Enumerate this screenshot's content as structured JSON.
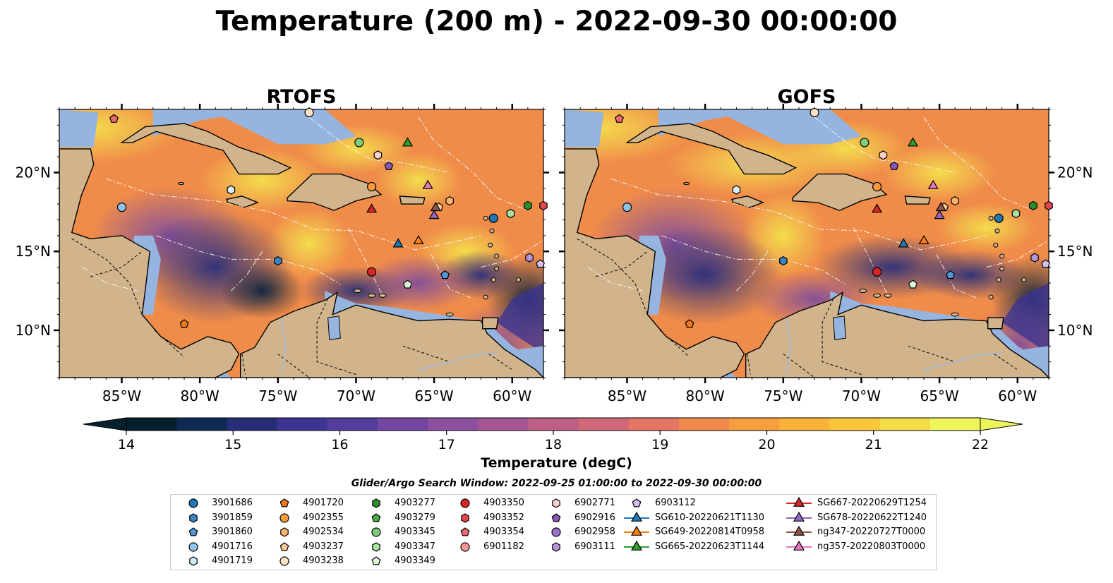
{
  "title": "Temperature (200 m) - 2022-09-30 00:00:00",
  "panels": [
    {
      "name": "RTOFS"
    },
    {
      "name": "GOFS"
    }
  ],
  "lon_ticks": [
    "85°W",
    "80°W",
    "75°W",
    "70°W",
    "65°W",
    "60°W"
  ],
  "lat_ticks": [
    "20°N",
    "15°N",
    "10°N"
  ],
  "map_extent": {
    "lon": [
      -89,
      -58
    ],
    "lat": [
      7,
      24
    ]
  },
  "colorbar": {
    "label": "Temperature (degC)",
    "ticks": [
      "14",
      "15",
      "16",
      "17",
      "18",
      "19",
      "20",
      "21",
      "22"
    ],
    "min": 14,
    "max": 22,
    "extend": "both",
    "colors": [
      "#06212e",
      "#0f2a52",
      "#262e78",
      "#3c3592",
      "#553d9e",
      "#7246a1",
      "#8d4f9f",
      "#a55693",
      "#bd5f86",
      "#d16877",
      "#e47563",
      "#f08a4a",
      "#f79e3f",
      "#fbb23a",
      "#fbc63a",
      "#f4dc45",
      "#eef55b"
    ]
  },
  "colors": {
    "land": "#d2b48c",
    "shelf": "#96b4e0"
  },
  "legend": {
    "title": "Glider/Argo Search Window: 2022-09-25 01:00:00 to 2022-09-30 00:00:00",
    "columns": [
      [
        {
          "label": "3901686",
          "marker": "circle",
          "color": "#1f77b4"
        },
        {
          "label": "3901859",
          "marker": "hexagon",
          "color": "#3a84c4"
        },
        {
          "label": "3901860",
          "marker": "pentagon",
          "color": "#4f94d4"
        },
        {
          "label": "4901716",
          "marker": "circle",
          "color": "#8ec3ea"
        },
        {
          "label": "4901719",
          "marker": "hexagon",
          "color": "#d5ecfb"
        }
      ],
      [
        {
          "label": "4901720",
          "marker": "pentagon",
          "color": "#ef7a1a"
        },
        {
          "label": "4902355",
          "marker": "circle",
          "color": "#f99a3c"
        },
        {
          "label": "4902534",
          "marker": "hexagon",
          "color": "#fbb36e"
        },
        {
          "label": "4903237",
          "marker": "pentagon",
          "color": "#fcc894"
        },
        {
          "label": "4903238",
          "marker": "circle",
          "color": "#fde3c8"
        }
      ],
      [
        {
          "label": "4903277",
          "marker": "hexagon",
          "color": "#2c8f2c"
        },
        {
          "label": "4903279",
          "marker": "pentagon",
          "color": "#49a84a"
        },
        {
          "label": "4903345",
          "marker": "circle",
          "color": "#7fcd7a"
        },
        {
          "label": "4903347",
          "marker": "hexagon",
          "color": "#a9e1a0"
        },
        {
          "label": "4903349",
          "marker": "pentagon",
          "color": "#dcf5d6"
        }
      ],
      [
        {
          "label": "4903350",
          "marker": "circle",
          "color": "#d62728"
        },
        {
          "label": "4903352",
          "marker": "hexagon",
          "color": "#e0474a"
        },
        {
          "label": "4903354",
          "marker": "pentagon",
          "color": "#eb6a6b"
        },
        {
          "label": "6901182",
          "marker": "circle",
          "color": "#f39896"
        }
      ],
      [
        {
          "label": "6902771",
          "marker": "hexagon",
          "color": "#fbcfcc"
        },
        {
          "label": "6902916",
          "marker": "pentagon",
          "color": "#8a55b8"
        },
        {
          "label": "6902958",
          "marker": "circle",
          "color": "#9c6fca"
        },
        {
          "label": "6903111",
          "marker": "hexagon",
          "color": "#b594da"
        }
      ],
      [
        {
          "label": "6903112",
          "marker": "pentagon",
          "color": "#d4c0ee"
        },
        {
          "label": "SG610-20220621T1130",
          "marker": "triangle",
          "color": "#1f77b4"
        },
        {
          "label": "SG649-20220814T0958",
          "marker": "triangle",
          "color": "#ff7f0e"
        },
        {
          "label": "SG665-20220623T1144",
          "marker": "triangle",
          "color": "#2ca02c"
        }
      ],
      [
        {
          "label": "SG667-20220629T1254",
          "marker": "triangle",
          "color": "#d62728"
        },
        {
          "label": "SG678-20220622T1240",
          "marker": "triangle",
          "color": "#9467bd"
        },
        {
          "label": "ng347-20220727T0000",
          "marker": "triangle",
          "color": "#8c564b"
        },
        {
          "label": "ng357-20220803T0000",
          "marker": "triangle",
          "color": "#e377c2"
        }
      ]
    ]
  },
  "observations": [
    {
      "label": "3901686",
      "lon": -61.2,
      "lat": 17.1
    },
    {
      "label": "3901859",
      "lon": -75.0,
      "lat": 14.4
    },
    {
      "label": "3901860",
      "lon": -64.3,
      "lat": 13.5
    },
    {
      "label": "4901716",
      "lon": -85.0,
      "lat": 17.8
    },
    {
      "label": "4901719",
      "lon": -78.0,
      "lat": 18.9
    },
    {
      "label": "4901720",
      "lon": -81.0,
      "lat": 10.4
    },
    {
      "label": "4902355",
      "lon": -69.0,
      "lat": 19.1
    },
    {
      "label": "4902534",
      "lon": -64.0,
      "lat": 18.2
    },
    {
      "label": "4903237",
      "lon": -64.7,
      "lat": 17.8
    },
    {
      "label": "4903238",
      "lon": -73.0,
      "lat": 23.8
    },
    {
      "label": "4903277",
      "lon": -59.0,
      "lat": 17.9
    },
    {
      "label": "4903345",
      "lon": -69.8,
      "lat": 21.9
    },
    {
      "label": "4903347",
      "lon": -60.1,
      "lat": 17.4
    },
    {
      "label": "4903349",
      "lon": -66.7,
      "lat": 12.9
    },
    {
      "label": "4903350",
      "lon": -69.0,
      "lat": 13.7
    },
    {
      "label": "4903352",
      "lon": -58.0,
      "lat": 17.9
    },
    {
      "label": "4903354",
      "lon": -85.5,
      "lat": 23.4
    },
    {
      "label": "6902771",
      "lon": -68.6,
      "lat": 21.1
    },
    {
      "label": "6902916",
      "lon": -67.9,
      "lat": 20.4
    },
    {
      "label": "6903111",
      "lon": -58.9,
      "lat": 14.6
    },
    {
      "label": "6903112",
      "lon": -58.2,
      "lat": 14.2
    },
    {
      "label": "SG610-20220621T1130",
      "lon": -67.3,
      "lat": 15.5
    },
    {
      "label": "SG649-20220814T0958",
      "lon": -66.0,
      "lat": 15.7
    },
    {
      "label": "SG665-20220623T1144",
      "lon": -66.7,
      "lat": 21.9
    },
    {
      "label": "SG667-20220629T1254",
      "lon": -69.0,
      "lat": 17.7
    },
    {
      "label": "SG678-20220622T1240",
      "lon": -65.0,
      "lat": 17.3
    },
    {
      "label": "ng347-20220727T0000",
      "lon": -64.9,
      "lat": 17.8
    },
    {
      "label": "ng357-20220803T0000",
      "lon": -65.4,
      "lat": 19.2
    }
  ]
}
